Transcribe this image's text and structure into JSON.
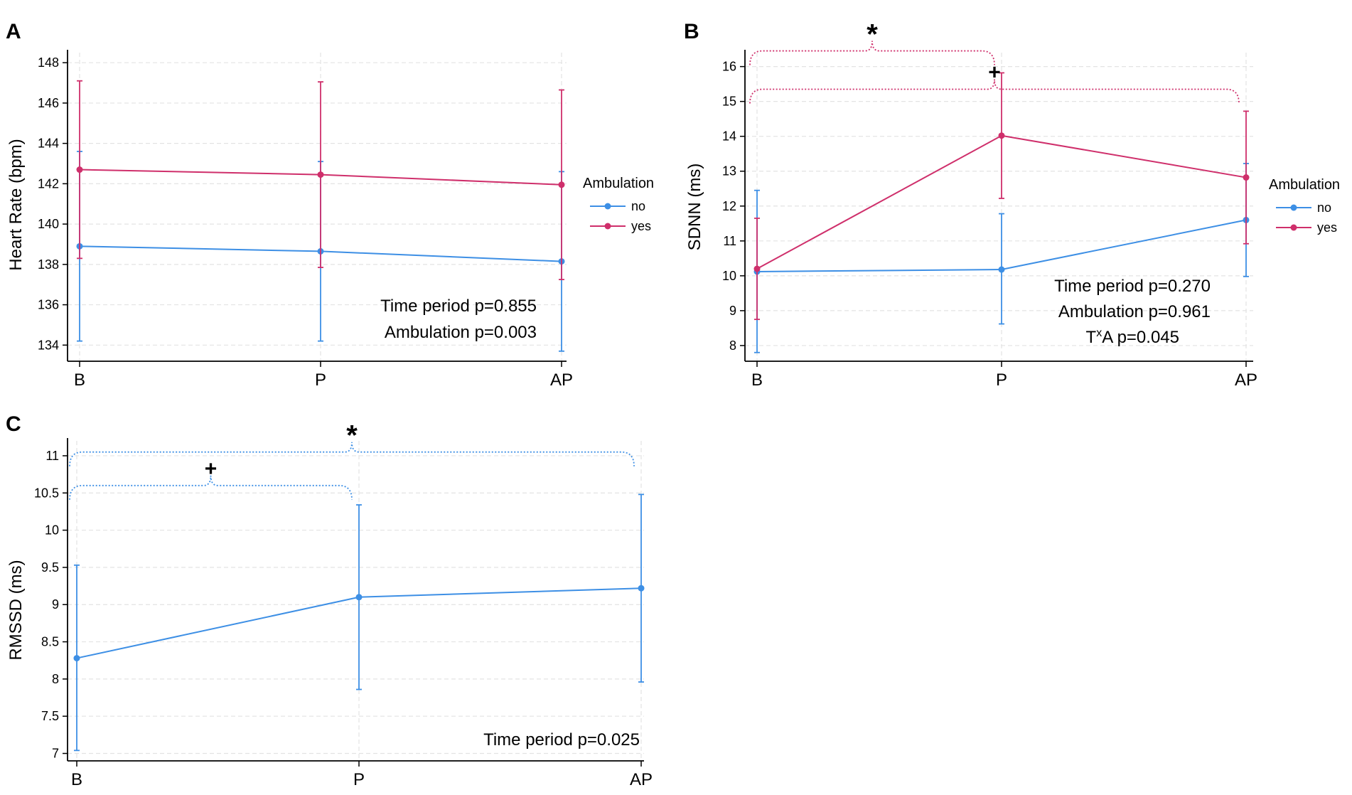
{
  "figure": {
    "colors": {
      "no": "#3d8fe5",
      "yes": "#cf2f6b",
      "grid": "#e3e3e3",
      "axis": "#000000"
    }
  },
  "chart_data": [
    {
      "type": "line",
      "panel": "A",
      "ylabel": "Heart Rate (bpm)",
      "categories": [
        "B",
        "P",
        "AP"
      ],
      "ylim": [
        133.2,
        148.5
      ],
      "yticks": [
        134,
        136,
        138,
        140,
        142,
        144,
        146,
        148
      ],
      "grid": true,
      "legend": {
        "title": "Ambulation",
        "position": "right"
      },
      "series": [
        {
          "name": "no",
          "color_key": "no",
          "values": [
            138.9,
            138.65,
            138.15
          ],
          "lower": [
            134.2,
            134.2,
            133.7
          ],
          "upper": [
            143.6,
            143.1,
            142.6
          ]
        },
        {
          "name": "yes",
          "color_key": "yes",
          "values": [
            142.7,
            142.45,
            141.95
          ],
          "lower": [
            138.3,
            137.85,
            137.25
          ],
          "upper": [
            147.1,
            147.05,
            146.65
          ]
        }
      ],
      "annotations": [
        "Time period p=0.855",
        "Ambulation p=0.003"
      ],
      "brackets": []
    },
    {
      "type": "line",
      "panel": "B",
      "ylabel": "SDNN (ms)",
      "categories": [
        "B",
        "P",
        "AP"
      ],
      "ylim": [
        7.55,
        16.4
      ],
      "yticks": [
        8,
        9,
        10,
        11,
        12,
        13,
        14,
        15,
        16
      ],
      "grid": true,
      "legend": {
        "title": "Ambulation",
        "position": "right"
      },
      "series": [
        {
          "name": "no",
          "color_key": "no",
          "values": [
            10.12,
            10.18,
            11.6
          ],
          "lower": [
            7.8,
            8.62,
            9.98
          ],
          "upper": [
            12.45,
            11.78,
            13.22
          ]
        },
        {
          "name": "yes",
          "color_key": "yes",
          "values": [
            10.2,
            14.02,
            12.82
          ],
          "lower": [
            8.75,
            12.22,
            10.92
          ],
          "upper": [
            11.65,
            15.82,
            14.72
          ]
        }
      ],
      "annotations": [
        "Time period p=0.270",
        "Ambulation p=0.961"
      ],
      "interaction": {
        "main": "T",
        "sup": "x",
        "rest": "A p=0.045"
      },
      "brackets": [
        {
          "from": 0,
          "to": 1,
          "value": 16.45,
          "symbol": "*",
          "color_key": "yes"
        },
        {
          "from": 0,
          "to": 2,
          "value": 15.35,
          "symbol": "+",
          "color_key": "yes"
        }
      ]
    },
    {
      "type": "line",
      "panel": "C",
      "ylabel": "RMSSD (ms)",
      "categories": [
        "B",
        "P",
        "AP"
      ],
      "ylim": [
        6.9,
        11.2
      ],
      "yticks": [
        "7",
        "7.5",
        "8",
        "8.5",
        "9",
        "9.5",
        "10",
        "10.5",
        "11"
      ],
      "grid": true,
      "legend": null,
      "series": [
        {
          "name": "no",
          "color_key": "no",
          "values": [
            8.28,
            9.1,
            9.22
          ],
          "lower": [
            7.04,
            7.86,
            7.96
          ],
          "upper": [
            9.53,
            10.34,
            10.48
          ]
        }
      ],
      "annotations": [
        "Time period p=0.025"
      ],
      "brackets": [
        {
          "from": 0,
          "to": 2,
          "value": 11.05,
          "symbol": "*",
          "color_key": "no"
        },
        {
          "from": 0,
          "to": 1,
          "value": 10.6,
          "symbol": "+",
          "color_key": "no"
        }
      ]
    }
  ]
}
